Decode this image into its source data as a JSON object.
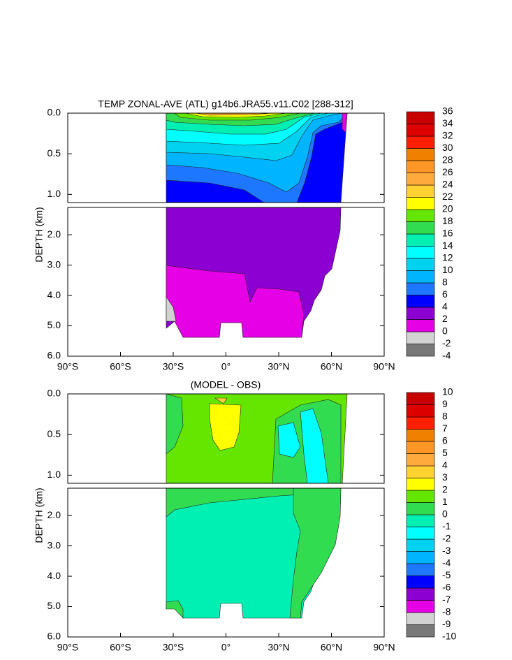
{
  "chart_data": [
    {
      "type": "contour",
      "title": "TEMP ZONAL-AVE (ATL) g14b6.JRA55.v11.C02 [288-312]",
      "ylabel": "DEPTH (km)",
      "xlim": [
        -90,
        90
      ],
      "xticks": [
        {
          "value": -90,
          "label": "90°S"
        },
        {
          "value": -60,
          "label": "60°S"
        },
        {
          "value": -30,
          "label": "30°S"
        },
        {
          "value": 0,
          "label": "0°"
        },
        {
          "value": 30,
          "label": "30°N"
        },
        {
          "value": 60,
          "label": "60°N"
        },
        {
          "value": 90,
          "label": "90°N"
        }
      ],
      "panels": [
        {
          "ylim": [
            0,
            1.1
          ],
          "yticks": [
            {
              "value": 0,
              "label": "0.0"
            },
            0.5,
            {
              "value": 1,
              "label": "1.0"
            }
          ]
        },
        {
          "ylim": [
            1.1,
            6
          ],
          "yticks": [
            {
              "value": 2,
              "label": "2.0"
            },
            {
              "value": 3,
              "label": "3.0"
            },
            {
              "value": 4,
              "label": "4.0"
            },
            {
              "value": 5,
              "label": "5.0"
            },
            {
              "value": 6,
              "label": "6.0"
            }
          ]
        }
      ],
      "colorbar": {
        "levels": [
          -4,
          -2,
          0,
          2,
          4,
          6,
          8,
          10,
          12,
          14,
          16,
          18,
          20,
          22,
          24,
          26,
          28,
          30,
          32,
          34,
          36
        ],
        "colors": [
          "#787878",
          "#d2d2d2",
          "#e600e6",
          "#8c00d2",
          "#0000ff",
          "#1e78ff",
          "#00b4ff",
          "#00d2f0",
          "#00ffff",
          "#00f0b4",
          "#32dc50",
          "#64e600",
          "#ffff00",
          "#ffd232",
          "#ffaa3c",
          "#ff9628",
          "#f08000",
          "#ff1e00",
          "#dc0000",
          "#c80000"
        ]
      }
    },
    {
      "type": "contour",
      "title": "(MODEL - OBS)",
      "ylabel": "DEPTH (km)",
      "xlim": [
        -90,
        90
      ],
      "xticks": [
        {
          "value": -90,
          "label": "90°S"
        },
        {
          "value": -60,
          "label": "60°S"
        },
        {
          "value": -30,
          "label": "30°S"
        },
        {
          "value": 0,
          "label": "0°"
        },
        {
          "value": 30,
          "label": "30°N"
        },
        {
          "value": 60,
          "label": "60°N"
        },
        {
          "value": 90,
          "label": "90°N"
        }
      ],
      "panels": [
        {
          "ylim": [
            0,
            1.1
          ],
          "yticks": [
            {
              "value": 0,
              "label": "0.0"
            },
            0.5,
            {
              "value": 1,
              "label": "1.0"
            }
          ]
        },
        {
          "ylim": [
            1.1,
            6
          ],
          "yticks": [
            {
              "value": 2,
              "label": "2.0"
            },
            {
              "value": 3,
              "label": "3.0"
            },
            {
              "value": 4,
              "label": "4.0"
            },
            {
              "value": 5,
              "label": "5.0"
            },
            {
              "value": 6,
              "label": "6.0"
            }
          ]
        }
      ],
      "colorbar": {
        "levels": [
          -10,
          -9,
          -8,
          -7,
          -6,
          -5,
          -4,
          -3,
          -2,
          -1,
          0,
          1,
          2,
          3,
          4,
          5,
          6,
          7,
          8,
          9,
          10
        ],
        "colors": [
          "#787878",
          "#d2d2d2",
          "#e600e6",
          "#8c00d2",
          "#0000ff",
          "#1e78ff",
          "#00b4ff",
          "#00d2f0",
          "#00ffff",
          "#00f0b4",
          "#32dc50",
          "#64e600",
          "#ffff00",
          "#ffd232",
          "#ffaa3c",
          "#ff9628",
          "#f08000",
          "#ff1e00",
          "#dc0000",
          "#c80000"
        ]
      }
    }
  ]
}
